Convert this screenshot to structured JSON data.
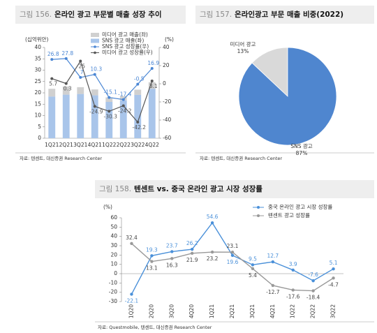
{
  "chart_data": [
    {
      "type": "bar",
      "label": "그림 156.",
      "title": "온라인 광고 부문별 매출 성장 추이",
      "ylabel": "(십억위안)",
      "y2label": "(%)",
      "source": "자료: 텐센트, 대신증권 Research Center",
      "categories": [
        "1Q21",
        "2Q21",
        "3Q21",
        "4Q21",
        "1Q22",
        "2Q22",
        "3Q22",
        "4Q22"
      ],
      "series": [
        {
          "name": "미디어 광고 매출(좌)",
          "color": "#d0d0d0",
          "values": [
            3.4,
            3.6,
            3.0,
            2.6,
            2.0,
            1.9,
            2.3,
            2.9
          ]
        },
        {
          "name": "SNS 광고 매출(좌)",
          "color": "#a9c5ea",
          "values": [
            18.4,
            19.2,
            19.5,
            18.9,
            16.0,
            16.7,
            19.1,
            21.8
          ]
        },
        {
          "name": "SNS 광고 성장률(우)",
          "color": "#4a86d4",
          "type": "line",
          "axis": "y2",
          "values": [
            26.8,
            27.8,
            7.0,
            10.3,
            -15.1,
            -17.4,
            -0.5,
            16.9
          ]
        },
        {
          "name": "미디어 광고 성장률(우)",
          "color": "#555555",
          "type": "line",
          "axis": "y2",
          "values": [
            5.7,
            0.3,
            25.0,
            -24.9,
            -30.3,
            -24.2,
            -42.2,
            3.1
          ]
        }
      ],
      "ylim": [
        0,
        40
      ],
      "yticks": [
        0,
        5,
        10,
        15,
        20,
        25,
        30,
        35,
        40
      ],
      "y2lim": [
        -60,
        40
      ],
      "y2ticks": [
        -60,
        -40,
        -20,
        0,
        20,
        40
      ]
    },
    {
      "type": "pie",
      "label": "그림 157.",
      "title": "온라인광고 부문 매출 비중(2022)",
      "source": "자료: 텐센트, 대신증권 Research Center",
      "categories": [
        "미디어 광고",
        "SNS 광고"
      ],
      "values": [
        13,
        87
      ],
      "value_labels": [
        "13%",
        "87%"
      ],
      "colors": [
        "#d9d9d9",
        "#4f86cf"
      ]
    },
    {
      "type": "line",
      "label": "그림 158.",
      "title": "텐센트 vs. 중국 온라인 광고 시장 성장률",
      "ylabel": "(%)",
      "source": "자료: Questmobile, 텐센트, 대신증권 Research Center",
      "categories": [
        "1Q20",
        "2Q20",
        "3Q20",
        "4Q20",
        "1Q21",
        "2Q21",
        "3Q21",
        "4Q21",
        "1Q22",
        "2Q22",
        "3Q22"
      ],
      "series": [
        {
          "name": "중국 온라인 광고 시장 성장률",
          "color": "#4a90d9",
          "values": [
            -22.1,
            19.3,
            23.7,
            26.2,
            54.6,
            19.6,
            9.5,
            12.7,
            3.9,
            -7.6,
            5.1
          ]
        },
        {
          "name": "텐센트 광고 성장률",
          "color": "#999999",
          "values": [
            32.4,
            13.1,
            16.3,
            21.9,
            23.2,
            23.1,
            5.4,
            -12.7,
            -17.6,
            -18.4,
            -4.7
          ]
        }
      ],
      "ylim": [
        -30,
        60
      ],
      "yticks": [
        -30,
        -20,
        -10,
        0,
        10,
        20,
        30,
        40,
        50,
        60
      ]
    }
  ]
}
